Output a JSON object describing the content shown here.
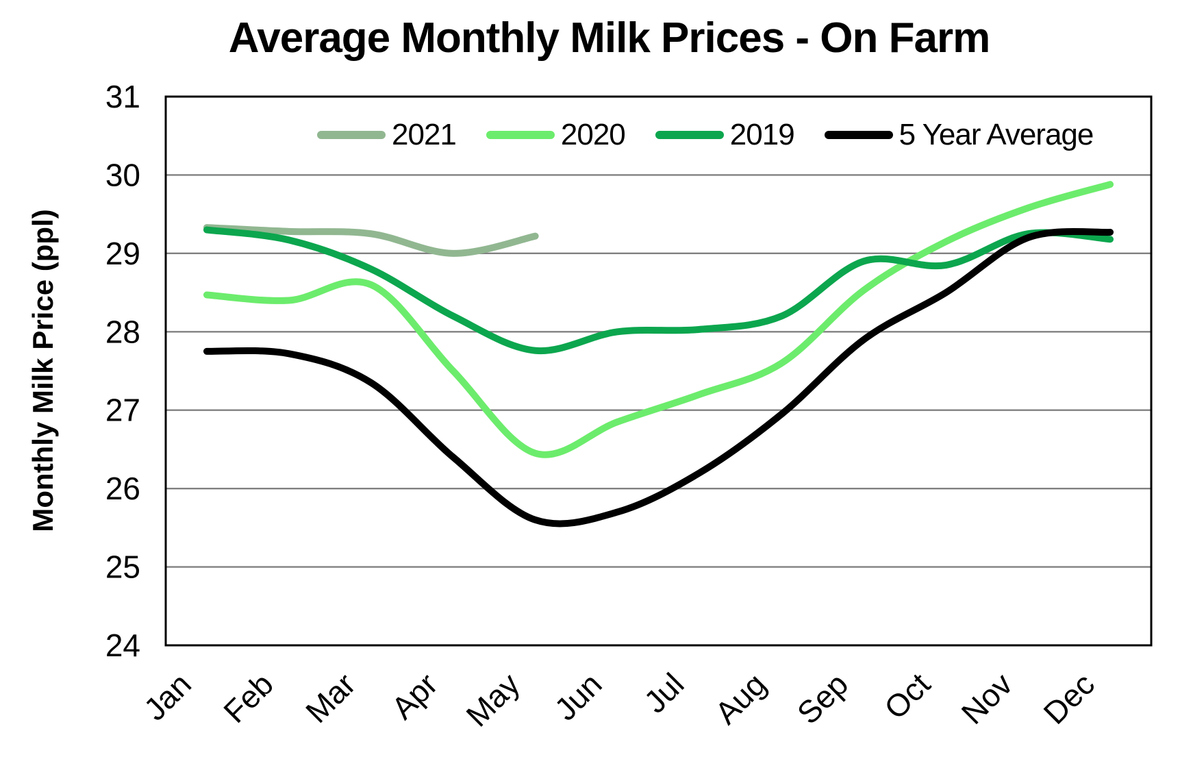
{
  "chart_data": {
    "type": "line",
    "title": "Average Monthly Milk Prices - On Farm",
    "xlabel": "",
    "ylabel": "Monthly Milk Price (ppl)",
    "categories": [
      "Jan",
      "Feb",
      "Mar",
      "Apr",
      "May",
      "Jun",
      "Jul",
      "Aug",
      "Sep",
      "Oct",
      "Nov",
      "Dec"
    ],
    "y_ticks": [
      31,
      30,
      29,
      28,
      27,
      26,
      25,
      24
    ],
    "ylim": [
      24,
      31
    ],
    "grid": "horizontal",
    "legend_position": "top-center-inside",
    "line_style": "smoothed",
    "series": [
      {
        "name": "2021",
        "color": "#91B791",
        "values": [
          29.33,
          29.28,
          29.25,
          29.0,
          29.22,
          null,
          null,
          null,
          null,
          null,
          null,
          null
        ]
      },
      {
        "name": "2020",
        "color": "#6CEC6C",
        "values": [
          28.47,
          28.4,
          28.6,
          27.5,
          26.45,
          26.85,
          27.2,
          27.6,
          28.53,
          29.15,
          29.58,
          29.88
        ]
      },
      {
        "name": "2019",
        "color": "#0CA64E",
        "values": [
          29.3,
          29.17,
          28.8,
          28.2,
          27.76,
          28.0,
          28.03,
          28.2,
          28.9,
          28.85,
          29.25,
          29.18
        ]
      },
      {
        "name": "5 Year Average",
        "color": "#000000",
        "values": [
          27.75,
          27.72,
          27.35,
          26.4,
          25.6,
          25.7,
          26.2,
          26.95,
          27.9,
          28.5,
          29.2,
          29.27
        ]
      }
    ]
  },
  "colors": {
    "background": "#FFFFFF",
    "gridline": "#808080",
    "frame": "#000000",
    "text": "#000000"
  }
}
